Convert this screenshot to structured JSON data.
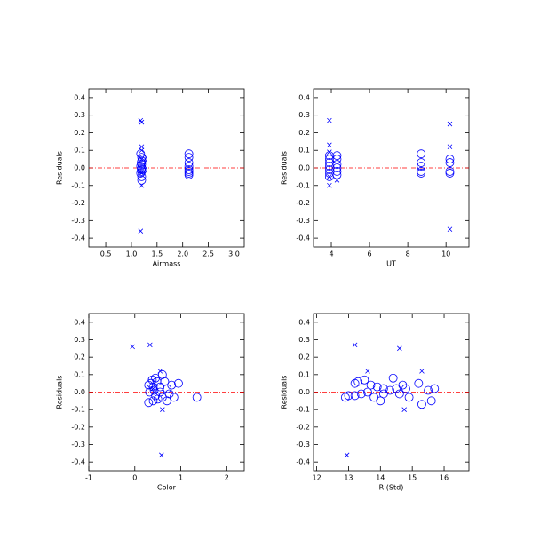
{
  "chart_data": [
    {
      "type": "scatter",
      "xlabel": "Airmass",
      "ylabel": "Residuals",
      "xlim": [
        0.17,
        3.2
      ],
      "ylim": [
        -0.45,
        0.45
      ],
      "xticks": [
        0.5,
        {
          "value": 1,
          "label": "1.0"
        },
        1.5,
        {
          "value": 2,
          "label": "2.0"
        },
        2.5,
        {
          "value": 3,
          "label": "3.0"
        }
      ],
      "yticks": [
        -0.4,
        -0.3,
        -0.2,
        -0.1,
        {
          "value": 0,
          "label": "0.0"
        },
        0.1,
        0.2,
        0.3,
        0.4
      ],
      "hline": 0,
      "hline_color": "#ff0000",
      "series": [
        {
          "marker": "o",
          "color": "#0000ff",
          "x": [
            1.18,
            1.2,
            1.2,
            1.19,
            1.2,
            1.18,
            1.2,
            1.19,
            1.2,
            1.18,
            1.2,
            1.2,
            1.22,
            1.22,
            2.12,
            2.12,
            2.12,
            2.12,
            2.12,
            2.12,
            2.12,
            2.12
          ],
          "values": [
            0.08,
            0.06,
            0.04,
            0.03,
            0.02,
            0.01,
            0.0,
            -0.01,
            -0.02,
            -0.03,
            -0.05,
            -0.07,
            0.05,
            -0.01,
            0.08,
            0.06,
            0.03,
            0.01,
            -0.01,
            -0.02,
            -0.03,
            -0.04
          ]
        },
        {
          "marker": "x",
          "color": "#0000ff",
          "x": [
            1.18,
            1.2,
            1.2,
            1.2,
            1.2,
            1.2,
            1.2,
            1.18
          ],
          "values": [
            0.27,
            0.26,
            0.12,
            0.1,
            0.05,
            -0.03,
            -0.1,
            -0.36
          ]
        }
      ]
    },
    {
      "type": "scatter",
      "xlabel": "UT",
      "ylabel": "Residuals",
      "xlim": [
        3.07,
        11.2
      ],
      "ylim": [
        -0.45,
        0.45
      ],
      "xticks": [
        4,
        6,
        8,
        10
      ],
      "yticks": [
        -0.4,
        -0.3,
        -0.2,
        -0.1,
        {
          "value": 0,
          "label": "0.0"
        },
        0.1,
        0.2,
        0.3,
        0.4
      ],
      "hline": 0,
      "hline_color": "#ff0000",
      "series": [
        {
          "marker": "o",
          "color": "#0000ff",
          "x": [
            3.9,
            3.9,
            3.9,
            3.9,
            3.9,
            3.9,
            3.9,
            4.3,
            4.3,
            4.3,
            4.3,
            4.3,
            4.3,
            8.7,
            8.7,
            8.7,
            8.7,
            8.7,
            10.2,
            10.2,
            10.2,
            10.2
          ],
          "values": [
            0.07,
            0.05,
            0.03,
            0.01,
            -0.01,
            -0.03,
            -0.05,
            0.07,
            0.05,
            0.02,
            0.0,
            -0.02,
            -0.04,
            0.08,
            0.03,
            0.01,
            -0.02,
            -0.03,
            0.05,
            0.03,
            -0.02,
            -0.03
          ]
        },
        {
          "marker": "x",
          "color": "#0000ff",
          "x": [
            3.9,
            3.9,
            3.9,
            3.9,
            3.9,
            4.3,
            10.2,
            10.2,
            10.2
          ],
          "values": [
            0.27,
            0.13,
            0.09,
            -0.05,
            -0.1,
            -0.07,
            0.25,
            0.12,
            -0.35
          ]
        }
      ]
    },
    {
      "type": "scatter",
      "xlabel": "Color",
      "ylabel": "Residuals",
      "xlim": [
        -1,
        2.38
      ],
      "ylim": [
        -0.45,
        0.45
      ],
      "xticks": [
        -1,
        0,
        1,
        2
      ],
      "yticks": [
        -0.4,
        -0.3,
        -0.2,
        -0.1,
        {
          "value": 0,
          "label": "0.0"
        },
        0.1,
        0.2,
        0.3,
        0.4
      ],
      "hline": 0,
      "hline_color": "#ff0000",
      "series": [
        {
          "marker": "o",
          "color": "#0000ff",
          "x": [
            0.3,
            0.35,
            0.38,
            0.4,
            0.42,
            0.45,
            0.48,
            0.5,
            0.55,
            0.6,
            0.65,
            0.7,
            0.75,
            0.8,
            0.85,
            0.95,
            1.35,
            0.32,
            0.45,
            0.6,
            0.3,
            0.4,
            0.55,
            0.7
          ],
          "values": [
            -0.06,
            0.05,
            0.07,
            0.03,
            0.01,
            -0.02,
            0.06,
            -0.04,
            0.03,
            -0.03,
            0.06,
            0.02,
            -0.01,
            0.04,
            -0.03,
            0.05,
            -0.03,
            0.0,
            0.08,
            0.1,
            0.04,
            -0.05,
            0.0,
            -0.05
          ]
        },
        {
          "marker": "x",
          "color": "#0000ff",
          "x": [
            -0.05,
            0.33,
            0.55,
            0.6,
            0.58,
            0.4
          ],
          "values": [
            0.26,
            0.27,
            0.12,
            -0.1,
            -0.36,
            0.02
          ]
        }
      ]
    },
    {
      "type": "scatter",
      "xlabel": "R (Std)",
      "ylabel": "Residuals",
      "xlim": [
        11.9,
        16.78
      ],
      "ylim": [
        -0.45,
        0.45
      ],
      "xticks": [
        12,
        13,
        14,
        15,
        16
      ],
      "yticks": [
        -0.4,
        -0.3,
        -0.2,
        -0.1,
        {
          "value": 0,
          "label": "0.0"
        },
        0.1,
        0.2,
        0.3,
        0.4
      ],
      "hline": 0,
      "hline_color": "#ff0000",
      "series": [
        {
          "marker": "o",
          "color": "#0000ff",
          "x": [
            12.9,
            13.0,
            13.2,
            13.3,
            13.4,
            13.5,
            13.6,
            13.7,
            13.8,
            13.9,
            14.0,
            14.1,
            14.3,
            14.4,
            14.5,
            14.6,
            14.7,
            14.8,
            14.9,
            15.2,
            15.3,
            15.5,
            15.6,
            15.7,
            14.1,
            13.2
          ],
          "values": [
            -0.03,
            -0.02,
            0.05,
            0.06,
            -0.01,
            0.07,
            0.0,
            0.04,
            -0.03,
            0.03,
            -0.05,
            0.02,
            0.01,
            0.08,
            0.02,
            -0.01,
            0.04,
            0.02,
            -0.03,
            0.05,
            -0.07,
            0.01,
            -0.05,
            0.02,
            -0.01,
            -0.02
          ]
        },
        {
          "marker": "x",
          "color": "#0000ff",
          "x": [
            12.95,
            13.2,
            13.6,
            14.6,
            14.75,
            15.3
          ],
          "values": [
            -0.36,
            0.27,
            0.12,
            0.25,
            -0.1,
            0.12
          ]
        }
      ]
    }
  ]
}
